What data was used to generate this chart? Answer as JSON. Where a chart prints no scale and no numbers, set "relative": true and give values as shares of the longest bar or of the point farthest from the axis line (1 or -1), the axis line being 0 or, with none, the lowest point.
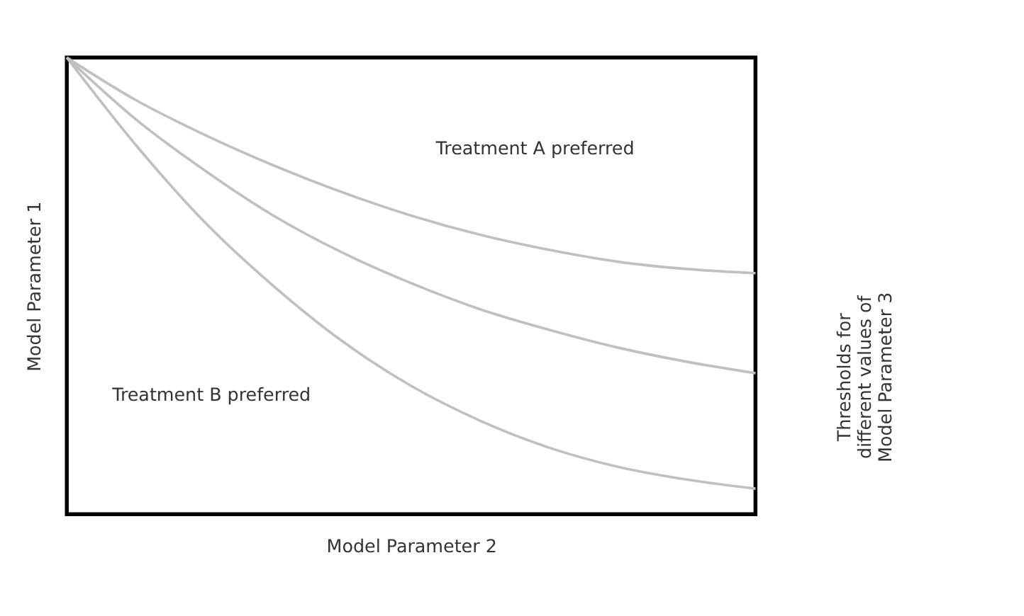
{
  "chart_data": {
    "type": "line",
    "relative": true,
    "xlabel": "Model Parameter 2",
    "ylabel": "Model Parameter 1",
    "categories": [
      null,
      null,
      null,
      null,
      null,
      null,
      null,
      null,
      null,
      null,
      null
    ],
    "series": [
      {
        "color": "#c0c0c0",
        "values": [
          1,
          0.907,
          0.831,
          0.764,
          0.705,
          0.654,
          0.612,
          0.579,
          0.553,
          0.537,
          0.528
        ]
      },
      {
        "color": "#c0c0c0",
        "values": [
          1,
          0.865,
          0.753,
          0.654,
          0.573,
          0.506,
          0.449,
          0.404,
          0.365,
          0.334,
          0.309
        ]
      },
      {
        "color": "#c0c0c0",
        "values": [
          1,
          0.809,
          0.64,
          0.5,
          0.379,
          0.281,
          0.205,
          0.146,
          0.104,
          0.076,
          0.056
        ]
      }
    ],
    "annotations": [
      "Treatment A preferred",
      "Treatment B preferred",
      "Thresholds for\ndifferent values of\nModel Parameter 3"
    ],
    "grid": false,
    "tick_labels": false,
    "marker": "none",
    "line_style": "solid"
  }
}
